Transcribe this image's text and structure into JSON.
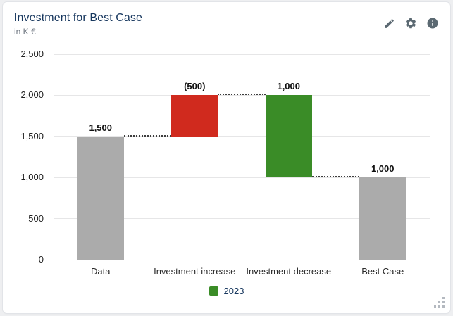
{
  "page": {
    "background_color": "#eeeff1",
    "card_color": "#ffffff"
  },
  "header": {
    "title": "Investment for Best Case",
    "subtitle": "in K €",
    "title_color": "#17375e",
    "toolbar_icons": [
      "edit-pencil-icon",
      "settings-gear-icon",
      "info-circle-icon"
    ],
    "icon_color": "#5b6972"
  },
  "chart_data": {
    "type": "waterfall",
    "title": "Investment for Best Case",
    "subtitle": "in K €",
    "unit": "K €",
    "categories": [
      "Data",
      "Investment increase",
      "Investment decrease",
      "Best Case"
    ],
    "bars": [
      {
        "category": "Data",
        "label": "1,500",
        "start": 0,
        "end": 1500,
        "value": 1500,
        "color_key": "neutral"
      },
      {
        "category": "Investment increase",
        "label": "(500)",
        "start": 1500,
        "end": 2000,
        "value": -500,
        "color_key": "negative"
      },
      {
        "category": "Investment decrease",
        "label": "1,000",
        "start": 2000,
        "end": 1000,
        "value": 1000,
        "color_key": "positive"
      },
      {
        "category": "Best Case",
        "label": "1,000",
        "start": 0,
        "end": 1000,
        "value": 1000,
        "color_key": "neutral"
      }
    ],
    "connectors": [
      {
        "level": 1500,
        "from_bar": 0,
        "to_bar": 1
      },
      {
        "level": 2000,
        "from_bar": 1,
        "to_bar": 2
      },
      {
        "level": 1000,
        "from_bar": 2,
        "to_bar": 3
      }
    ],
    "y_ticks": [
      {
        "value": 0,
        "label": "0"
      },
      {
        "value": 500,
        "label": "500"
      },
      {
        "value": 1000,
        "label": "1,000"
      },
      {
        "value": 1500,
        "label": "1,500"
      },
      {
        "value": 2000,
        "label": "2,000"
      },
      {
        "value": 2500,
        "label": "2,500"
      }
    ],
    "ylim": [
      0,
      2500
    ],
    "grid": true,
    "legend": {
      "position": "bottom-center",
      "items": [
        {
          "label": "2023",
          "color": "#3a8c27"
        }
      ]
    },
    "colors": {
      "neutral": "#ababab",
      "negative": "#d02a1e",
      "positive": "#3a8c27"
    }
  }
}
